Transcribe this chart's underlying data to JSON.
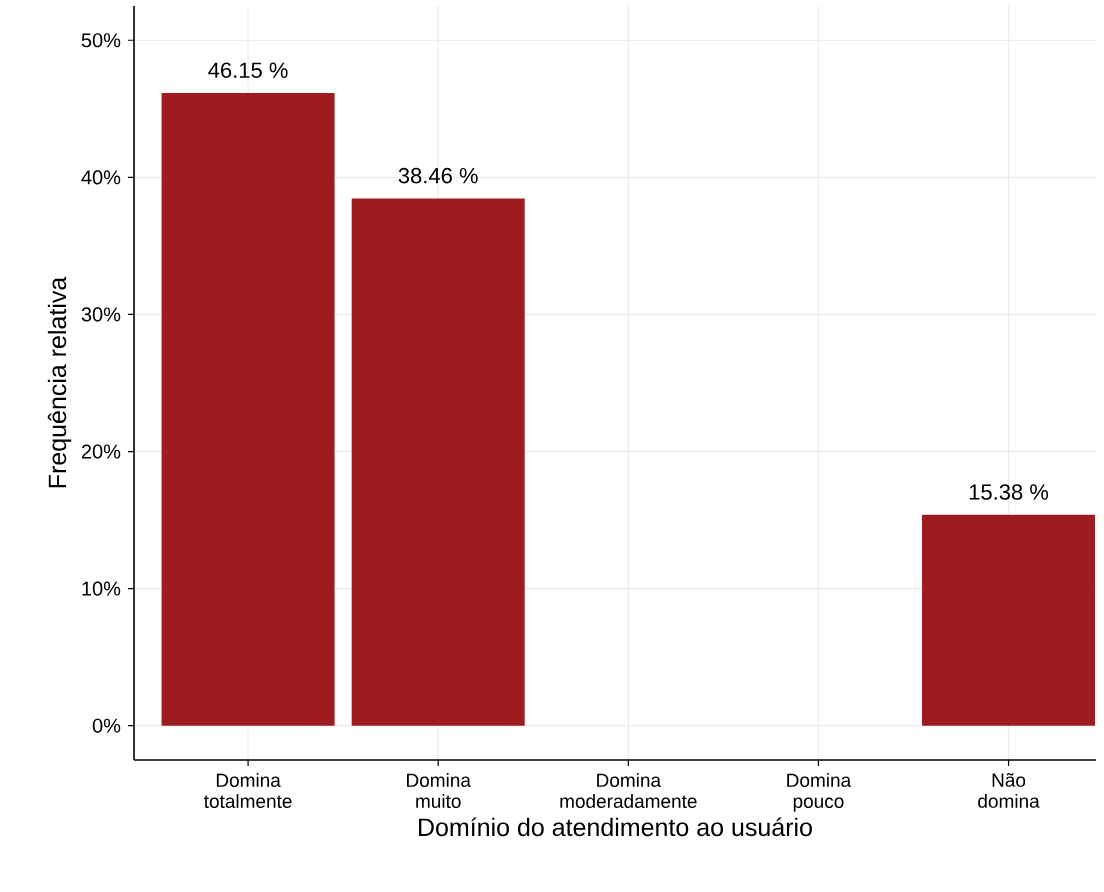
{
  "chart_data": {
    "type": "bar",
    "xlabel": "Domínio do atendimento ao usuário",
    "ylabel": "Frequência relativa",
    "categories": [
      "Domina totalmente",
      "Domina muito",
      "Domina moderadamente",
      "Domina pouco",
      "Não domina"
    ],
    "values": [
      46.15,
      38.46,
      0,
      0,
      15.38
    ],
    "value_labels": [
      "46.15 %",
      "38.46 %",
      null,
      null,
      "15.38 %"
    ],
    "color": "#9e1b20",
    "ylim": [
      -2.5,
      52.5
    ],
    "yticks": [
      {
        "value": 0,
        "label": "0%"
      },
      {
        "value": 10,
        "label": "10%"
      },
      {
        "value": 20,
        "label": "20%"
      },
      {
        "value": 30,
        "label": "30%"
      },
      {
        "value": 40,
        "label": "40%"
      },
      {
        "value": 50,
        "label": "50%"
      }
    ],
    "grid": true
  }
}
